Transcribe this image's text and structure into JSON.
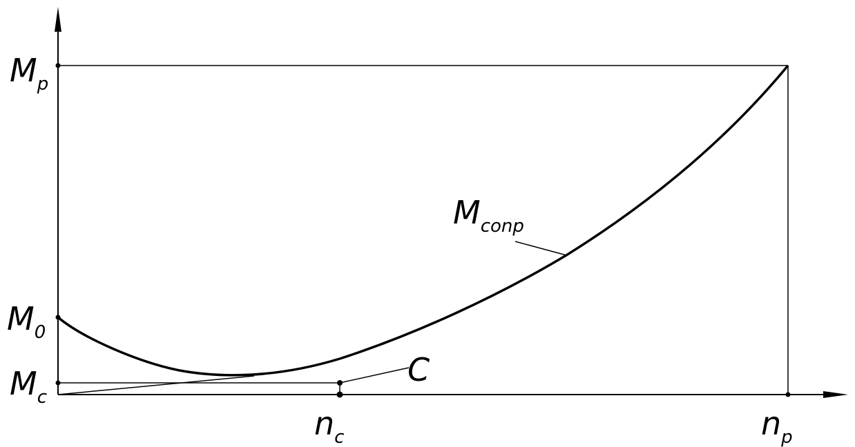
{
  "labels": {
    "y_top": {
      "main": "M",
      "sub": "p"
    },
    "y_zero": {
      "main": "M",
      "sub": "0"
    },
    "y_c": {
      "main": "M",
      "sub": "c"
    },
    "x_c": {
      "main": "n",
      "sub": "c"
    },
    "x_p": {
      "main": "n",
      "sub": "p"
    },
    "curve": {
      "main": "M",
      "sub": "conp"
    },
    "point_c": "C"
  }
}
